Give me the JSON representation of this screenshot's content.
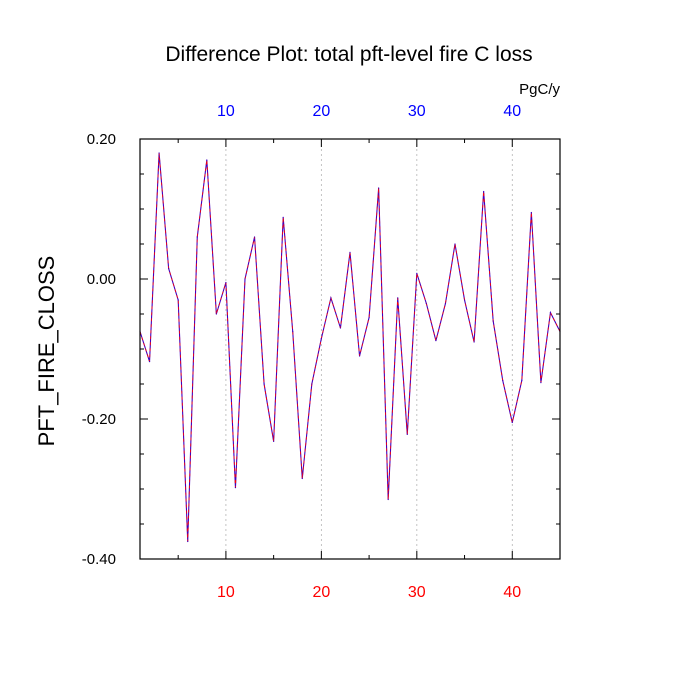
{
  "chart_data": {
    "type": "line",
    "title": "Difference Plot: total pft-level fire C loss",
    "units_label": "PgC/y",
    "ylabel": "PFT_FIRE_CLOSS",
    "xlabel": "",
    "xlim": [
      1,
      45
    ],
    "ylim": [
      -0.4,
      0.2
    ],
    "x_ticks": [
      10,
      20,
      30,
      40
    ],
    "x_tick_labels": [
      "10",
      "20",
      "30",
      "40"
    ],
    "y_ticks": [
      0.2,
      0.0,
      -0.2,
      -0.4
    ],
    "y_tick_labels": [
      "0.20",
      "0.00",
      "-0.20",
      "-0.40"
    ],
    "vertical_gridlines": true,
    "colors": {
      "series": "#4000c0",
      "series_overlay": "#ff0000",
      "top_tick_labels": "#0000ff",
      "bottom_tick_labels": "#ff0000",
      "grid": "#b4b4b4"
    },
    "x": [
      1,
      2,
      3,
      4,
      5,
      6,
      7,
      8,
      9,
      10,
      11,
      12,
      13,
      14,
      15,
      16,
      17,
      18,
      19,
      20,
      21,
      22,
      23,
      24,
      25,
      26,
      27,
      28,
      29,
      30,
      31,
      32,
      33,
      34,
      35,
      36,
      37,
      38,
      39,
      40,
      41,
      42,
      43,
      44,
      45
    ],
    "series": [
      {
        "values": [
          -0.075,
          -0.118,
          0.18,
          0.015,
          -0.03,
          -0.375,
          0.06,
          0.17,
          -0.05,
          -0.005,
          -0.298,
          0.0,
          0.06,
          -0.15,
          -0.232,
          0.088,
          -0.075,
          -0.285,
          -0.15,
          -0.085,
          -0.027,
          -0.07,
          0.038,
          -0.11,
          -0.055,
          0.13,
          -0.315,
          -0.027,
          -0.222,
          0.008,
          -0.035,
          -0.088,
          -0.035,
          0.05,
          -0.03,
          -0.09,
          0.125,
          -0.06,
          -0.145,
          -0.205,
          -0.145,
          0.095,
          -0.148,
          -0.048,
          -0.075
        ]
      }
    ]
  }
}
